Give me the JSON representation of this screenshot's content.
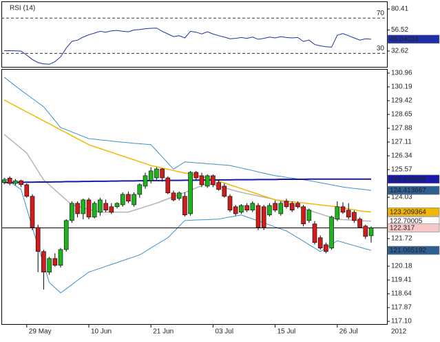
{
  "chart_data": [
    {
      "type": "line",
      "title": "RSI (14)",
      "color": "#1c2fa8",
      "label_bg": "#1c2fa8",
      "label_text": "#ffffff",
      "ylim": [
        14.6,
        89.03
      ],
      "yticks": [
        80.41,
        56.52,
        32.62
      ],
      "levels": [
        70,
        30
      ],
      "values": [
        32.9,
        33.0,
        32.8,
        32.5,
        28.0,
        23.0,
        19.5,
        18.0,
        17.6,
        20.5,
        26.0,
        36.0,
        43.6,
        45.0,
        48.5,
        51.0,
        53.0,
        55.0,
        54.0,
        55.5,
        56.0,
        55.0,
        54.5,
        56.5,
        57.0,
        58.0,
        58.5,
        58.7,
        55.0,
        52.0,
        49.0,
        50.0,
        47.5,
        55.0,
        54.0,
        52.0,
        54.5,
        52.0,
        50.0,
        48.5,
        46.5,
        47.0,
        48.0,
        47.0,
        48.5,
        46.0,
        47.0,
        48.5,
        47.5,
        49.0,
        48.0,
        47.5,
        48.0,
        43.5,
        45.0,
        40.0,
        38.5,
        37.5,
        37.0,
        50.5,
        52.5,
        50.0,
        47.5,
        45.0,
        46.5,
        46.04024
      ]
    },
    {
      "type": "candlestick",
      "up_color": "#1fb31f",
      "down_color": "#d01c1c",
      "last_label_bg": "#f6c8c8",
      "year_label": "2012",
      "ylim": [
        116.95,
        131.19
      ],
      "yticks": [
        130.96,
        130.19,
        129.42,
        128.65,
        127.88,
        127.11,
        126.34,
        125.57,
        124.03,
        121.72,
        120.18,
        119.41,
        118.64,
        117.87,
        {
          "value": 117.1,
          "label": "117.10"
        }
      ],
      "categories": [
        null,
        null,
        null,
        null,
        "29 May",
        null,
        null,
        null,
        null,
        null,
        null,
        null,
        null,
        null,
        null,
        "10 Jun",
        null,
        null,
        null,
        null,
        null,
        null,
        null,
        null,
        null,
        null,
        "21 Jun",
        null,
        null,
        null,
        null,
        null,
        null,
        null,
        null,
        null,
        null,
        "03 Jul",
        null,
        null,
        null,
        null,
        null,
        null,
        null,
        null,
        null,
        null,
        "15 Jul",
        null,
        null,
        null,
        null,
        null,
        null,
        null,
        null,
        null,
        null,
        "26 Jul",
        null,
        null,
        null,
        null,
        null,
        null
      ],
      "open": [
        124.85,
        125.1,
        124.8,
        124.95,
        124.73,
        124.08,
        122.34,
        121.0,
        119.85,
        120.61,
        120.23,
        121.11,
        122.73,
        123.69,
        123.11,
        123.88,
        122.92,
        123.19,
        123.69,
        123.5,
        123.5,
        123.61,
        124.19,
        123.61,
        124.19,
        124.65,
        124.96,
        125.11,
        125.61,
        125.11,
        124.27,
        123.96,
        124.08,
        123.11,
        125.42,
        125.23,
        124.65,
        125.23,
        124.85,
        124.65,
        124.08,
        123.5,
        123.19,
        123.57,
        123.31,
        123.57,
        123.5,
        123.04,
        123.69,
        123.11,
        123.81,
        123.69,
        123.69,
        123.5,
        122.73,
        122.54,
        121.77,
        121.38,
        121.19,
        122.81,
        123.5,
        123.31,
        123.19,
        122.81,
        122.42,
        121.88
      ],
      "high": [
        125.1,
        125.2,
        125.05,
        125.0,
        124.8,
        124.2,
        122.5,
        121.1,
        120.7,
        120.9,
        121.2,
        122.8,
        123.8,
        123.8,
        123.95,
        124.0,
        123.8,
        124.0,
        123.9,
        123.7,
        123.75,
        124.3,
        124.35,
        124.3,
        124.8,
        125.4,
        125.7,
        125.7,
        125.65,
        125.2,
        124.4,
        124.35,
        124.3,
        125.5,
        125.5,
        125.4,
        125.3,
        125.3,
        125.0,
        124.8,
        124.2,
        123.6,
        123.65,
        123.7,
        123.8,
        123.7,
        123.6,
        123.7,
        123.85,
        123.8,
        123.95,
        123.8,
        123.8,
        123.6,
        123.4,
        122.7,
        121.9,
        121.5,
        123.0,
        123.8,
        123.75,
        123.7,
        123.3,
        122.9,
        122.5,
        122.4
      ],
      "low": [
        124.75,
        124.7,
        124.7,
        124.6,
        124.0,
        122.2,
        119.85,
        118.88,
        119.7,
        120.15,
        120.1,
        121.0,
        122.6,
        122.9,
        122.8,
        122.8,
        122.85,
        123.0,
        123.2,
        123.1,
        123.4,
        123.5,
        123.7,
        123.5,
        124.0,
        124.5,
        124.8,
        125.0,
        124.9,
        124.2,
        123.8,
        123.85,
        122.95,
        123.0,
        125.0,
        124.6,
        124.55,
        124.6,
        124.4,
        124.0,
        123.2,
        123.0,
        123.1,
        123.2,
        123.2,
        122.2,
        122.2,
        122.95,
        123.2,
        123.0,
        123.4,
        123.2,
        123.4,
        122.4,
        122.6,
        121.4,
        121.1,
        120.9,
        121.1,
        122.7,
        123.1,
        122.8,
        122.6,
        122.3,
        121.7,
        121.5
      ],
      "close": [
        125.0,
        124.8,
        124.95,
        124.73,
        124.08,
        122.34,
        121.0,
        119.85,
        120.61,
        120.23,
        121.11,
        122.73,
        123.69,
        123.11,
        123.88,
        122.92,
        123.69,
        123.88,
        123.31,
        123.19,
        123.69,
        124.19,
        123.81,
        124.19,
        124.73,
        125.23,
        125.5,
        125.61,
        125.11,
        124.27,
        123.88,
        124.27,
        123.04,
        125.42,
        125.11,
        124.73,
        125.23,
        124.73,
        124.46,
        124.08,
        123.31,
        123.11,
        123.57,
        123.31,
        123.69,
        122.34,
        122.34,
        123.57,
        123.31,
        123.69,
        123.5,
        123.31,
        123.5,
        122.54,
        123.31,
        121.5,
        121.19,
        121.0,
        122.92,
        123.5,
        123.19,
        122.92,
        122.73,
        122.34,
        121.84,
        122.317
      ],
      "overlays": [
        {
          "color": "#3d8fc9",
          "width": 1,
          "label_bg": "#2f5f93",
          "label_text": "#ffffff",
          "values": [
            130.73,
            130.49,
            130.24,
            130.0,
            129.77,
            129.54,
            129.31,
            129.08,
            128.69,
            128.31,
            127.92,
            127.8,
            127.67,
            127.55,
            127.42,
            127.3,
            127.27,
            127.23,
            127.2,
            127.17,
            127.13,
            127.1,
            127.07,
            127.04,
            127.02,
            126.99,
            126.96,
            126.62,
            126.28,
            125.94,
            125.6,
            125.8,
            126.0,
            125.98,
            125.95,
            125.93,
            125.9,
            125.88,
            125.85,
            125.83,
            125.8,
            125.73,
            125.66,
            125.59,
            125.52,
            125.44,
            125.37,
            125.3,
            125.23,
            125.19,
            125.14,
            125.1,
            125.05,
            125.01,
            124.96,
            124.9,
            124.84,
            124.78,
            124.72,
            124.66,
            124.6,
            124.56,
            124.52,
            124.49,
            124.45,
            124.413667
          ]
        },
        {
          "color": "#3d8fc9",
          "width": 1,
          "label_bg": "#2f5f93",
          "label_text": "#ffffff",
          "values": [
            125.11,
            124.89,
            124.68,
            124.46,
            123.4,
            122.34,
            121.32,
            120.29,
            119.27,
            118.98,
            118.69,
            118.92,
            119.15,
            119.39,
            119.62,
            119.85,
            119.96,
            120.06,
            120.17,
            120.28,
            120.38,
            120.49,
            120.6,
            120.7,
            120.81,
            121.0,
            121.2,
            121.39,
            121.58,
            121.77,
            122.09,
            122.41,
            122.73,
            122.74,
            122.76,
            122.77,
            122.78,
            122.8,
            122.81,
            122.87,
            122.93,
            122.98,
            123.04,
            122.93,
            122.82,
            122.71,
            122.6,
            122.49,
            122.37,
            122.26,
            122.15,
            121.96,
            121.77,
            121.58,
            121.38,
            121.19,
            121.0,
            121.2,
            121.4,
            121.6,
            121.51,
            121.42,
            121.33,
            121.24,
            121.15,
            121.065192
          ]
        },
        {
          "color": "#b4b4b4",
          "width": 1.5,
          "label_bg": "#ffffff",
          "label_text": "#000000",
          "values": [
            127.54,
            127.28,
            127.02,
            126.76,
            126.5,
            126.0,
            125.5,
            125.0,
            124.72,
            124.44,
            124.16,
            123.88,
            123.6,
            123.52,
            123.44,
            123.36,
            123.28,
            123.2,
            123.2,
            123.2,
            123.2,
            123.2,
            123.2,
            123.3,
            123.4,
            123.5,
            123.6,
            123.7,
            123.82,
            123.94,
            124.06,
            124.18,
            124.3,
            124.42,
            124.55,
            124.68,
            124.8,
            124.72,
            124.63,
            124.55,
            124.47,
            124.38,
            124.3,
            124.23,
            124.17,
            124.1,
            124.03,
            123.97,
            123.9,
            123.8,
            123.7,
            123.6,
            123.5,
            123.4,
            123.3,
            123.2,
            123.1,
            123.0,
            122.9,
            122.8,
            122.78,
            122.76,
            122.74,
            122.72,
            122.71,
            122.70005
          ]
        },
        {
          "color": "#f2b705",
          "width": 1.5,
          "label_bg": "#f2b705",
          "label_text": "#000000",
          "values": [
            129.46,
            129.29,
            129.13,
            128.96,
            128.79,
            128.63,
            128.46,
            128.29,
            128.13,
            127.96,
            127.79,
            127.63,
            127.46,
            127.29,
            127.13,
            126.96,
            126.85,
            126.75,
            126.64,
            126.54,
            126.43,
            126.33,
            126.22,
            126.12,
            126.01,
            125.91,
            125.8,
            125.73,
            125.66,
            125.59,
            125.52,
            125.45,
            125.38,
            125.32,
            125.25,
            125.18,
            125.11,
            125.04,
            124.93,
            124.83,
            124.72,
            124.62,
            124.51,
            124.41,
            124.3,
            124.2,
            124.09,
            123.99,
            123.88,
            123.85,
            123.81,
            123.78,
            123.74,
            123.71,
            123.67,
            123.64,
            123.6,
            123.57,
            123.53,
            123.5,
            123.44,
            123.38,
            123.33,
            123.27,
            123.23,
            123.209364
          ]
        },
        {
          "color": "#1a1aa6",
          "width": 2,
          "label_bg": "#1a1aa6",
          "label_text": "#ffffff",
          "values": [
            124.85,
            124.85,
            124.86,
            124.86,
            124.87,
            124.87,
            124.88,
            124.88,
            124.88,
            124.89,
            124.89,
            124.9,
            124.9,
            124.9,
            124.91,
            124.91,
            124.92,
            124.92,
            124.92,
            124.93,
            124.93,
            124.94,
            124.94,
            124.94,
            124.95,
            124.95,
            124.96,
            124.96,
            124.96,
            124.97,
            124.97,
            124.97,
            124.98,
            124.98,
            124.98,
            124.99,
            124.99,
            124.99,
            125.0,
            125.0,
            125.0,
            125.01,
            125.01,
            125.01,
            125.01,
            125.02,
            125.02,
            125.02,
            125.02,
            125.03,
            125.03,
            125.03,
            125.03,
            125.03,
            125.04,
            125.04,
            125.04,
            125.04,
            125.04,
            125.04,
            125.04,
            125.04,
            125.04,
            125.04,
            125.04,
            125.039935
          ]
        }
      ]
    }
  ]
}
